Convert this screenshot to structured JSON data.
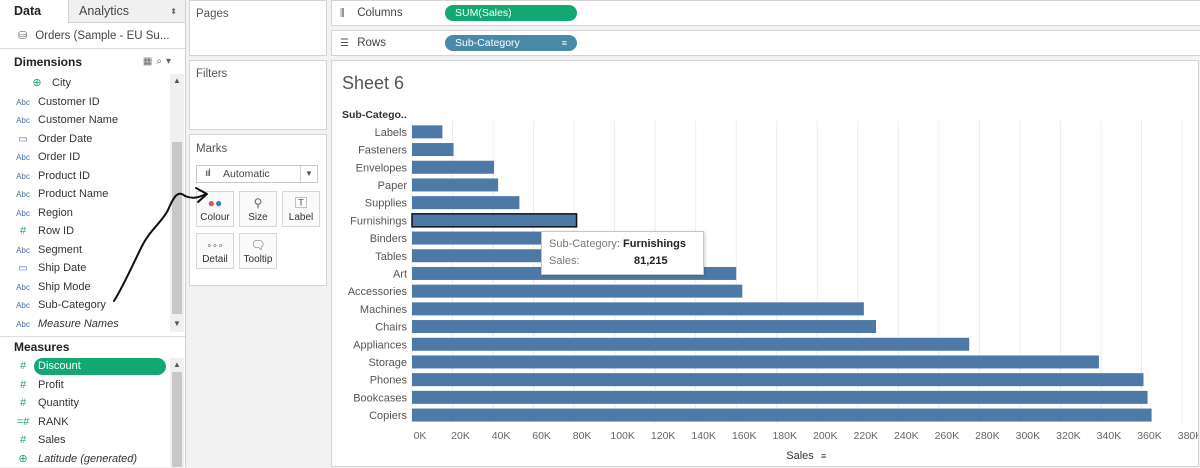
{
  "left_pane": {
    "tabs": [
      "Data",
      "Analytics"
    ],
    "datasource": "Orders (Sample - EU Su...",
    "dimensions_title": "Dimensions",
    "dimensions": [
      {
        "label": "City",
        "type": "globe"
      },
      {
        "label": "Customer ID",
        "type": "Abc"
      },
      {
        "label": "Customer Name",
        "type": "Abc"
      },
      {
        "label": "Order Date",
        "type": "date"
      },
      {
        "label": "Order ID",
        "type": "Abc"
      },
      {
        "label": "Product ID",
        "type": "Abc"
      },
      {
        "label": "Product Name",
        "type": "Abc"
      },
      {
        "label": "Region",
        "type": "Abc"
      },
      {
        "label": "Row ID",
        "type": "#"
      },
      {
        "label": "Segment",
        "type": "Abc"
      },
      {
        "label": "Ship Date",
        "type": "date"
      },
      {
        "label": "Ship Mode",
        "type": "Abc"
      },
      {
        "label": "Sub-Category",
        "type": "Abc"
      },
      {
        "label": "Measure Names",
        "type": "Abc",
        "italic": true
      }
    ],
    "measures_title": "Measures",
    "measures": [
      {
        "label": "Discount",
        "type": "#",
        "selected": true
      },
      {
        "label": "Profit",
        "type": "#"
      },
      {
        "label": "Quantity",
        "type": "#"
      },
      {
        "label": "RANK",
        "type": "=#"
      },
      {
        "label": "Sales",
        "type": "#"
      },
      {
        "label": "Latitude (generated)",
        "type": "globe",
        "italic": true
      }
    ]
  },
  "cards": {
    "pages": "Pages",
    "filters": "Filters",
    "marks": "Marks",
    "mark_type": "Automatic",
    "mark_buttons": [
      "Colour",
      "Size",
      "Label",
      "Detail",
      "Tooltip"
    ]
  },
  "shelves": {
    "columns_label": "Columns",
    "columns_pill": "SUM(Sales)",
    "rows_label": "Rows",
    "rows_pill": "Sub-Category"
  },
  "sheet_title": "Sheet 6",
  "tooltip": {
    "k1": "Sub-Category:",
    "v1": "Furnishings",
    "k2": "Sales:",
    "v2": "81,215"
  },
  "colors": {
    "bar": "#4e79a7",
    "green_pill": "#13a871",
    "blue_pill": "#4a8aa8"
  },
  "chart_data": {
    "type": "bar",
    "orientation": "horizontal",
    "row_header": "Sub-Catego..",
    "xlabel": "Sales",
    "categories": [
      "Labels",
      "Fasteners",
      "Envelopes",
      "Paper",
      "Supplies",
      "Furnishings",
      "Binders",
      "Tables",
      "Art",
      "Accessories",
      "Machines",
      "Chairs",
      "Appliances",
      "Storage",
      "Phones",
      "Bookcases",
      "Copiers"
    ],
    "values": [
      15000,
      20500,
      40500,
      42500,
      53000,
      81215,
      99000,
      99500,
      160000,
      163000,
      223000,
      229000,
      275000,
      339000,
      361000,
      363000,
      365000
    ],
    "highlighted": "Furnishings",
    "xlim": [
      0,
      380000
    ],
    "xticks": [
      "0K",
      "20K",
      "40K",
      "60K",
      "80K",
      "100K",
      "120K",
      "140K",
      "160K",
      "180K",
      "200K",
      "220K",
      "240K",
      "260K",
      "280K",
      "300K",
      "320K",
      "340K",
      "360K",
      "380K"
    ],
    "grid": true
  }
}
